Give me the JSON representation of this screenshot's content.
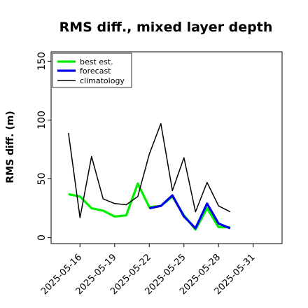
{
  "chart_data": {
    "type": "line",
    "title": "RMS diff., mixed layer depth",
    "ylabel": "RMS diff. (m)",
    "xlabel": "",
    "ylim": [
      -5,
      158
    ],
    "xlim": [
      "2025-05-13T12:00",
      "2025-06-02T12:00"
    ],
    "yticks": [
      0,
      50,
      100,
      150
    ],
    "xticks": [
      {
        "date": "2025-05-16",
        "label": "2025-05-16",
        "color": "#000000"
      },
      {
        "date": "2025-05-19",
        "label": "2025-05-19",
        "color": "#000000"
      },
      {
        "date": "2025-05-22",
        "label": "2025-05-22",
        "color": "#228b22"
      },
      {
        "date": "2025-05-25",
        "label": "2025-05-25",
        "color": "#000000"
      },
      {
        "date": "2025-05-28",
        "label": "2025-05-28",
        "color": "#000000"
      },
      {
        "date": "2025-05-31",
        "label": "2025-05-31",
        "color": "#000000"
      }
    ],
    "legend_position": "top-left",
    "grid": false,
    "x": [
      "2025-05-15",
      "2025-05-16",
      "2025-05-17",
      "2025-05-18",
      "2025-05-19",
      "2025-05-20",
      "2025-05-21",
      "2025-05-22",
      "2025-05-23",
      "2025-05-24",
      "2025-05-25",
      "2025-05-26",
      "2025-05-27",
      "2025-05-28",
      "2025-05-29"
    ],
    "series": [
      {
        "name": "best est.",
        "color": "#00ee00",
        "width": 3.2,
        "values": [
          37,
          35,
          25,
          23,
          18,
          19,
          46,
          26,
          27,
          35,
          19,
          7,
          25,
          9,
          9
        ]
      },
      {
        "name": "forecast",
        "color": "#0000ee",
        "width": 3.2,
        "values": [
          null,
          null,
          null,
          null,
          null,
          null,
          null,
          25,
          27,
          36,
          18,
          8,
          29,
          12,
          8
        ]
      },
      {
        "name": "climatology",
        "color": "#000000",
        "width": 1.5,
        "values": [
          89,
          17,
          69,
          33,
          29,
          28,
          35,
          71,
          97,
          40,
          68,
          22,
          47,
          27,
          22
        ]
      }
    ]
  }
}
